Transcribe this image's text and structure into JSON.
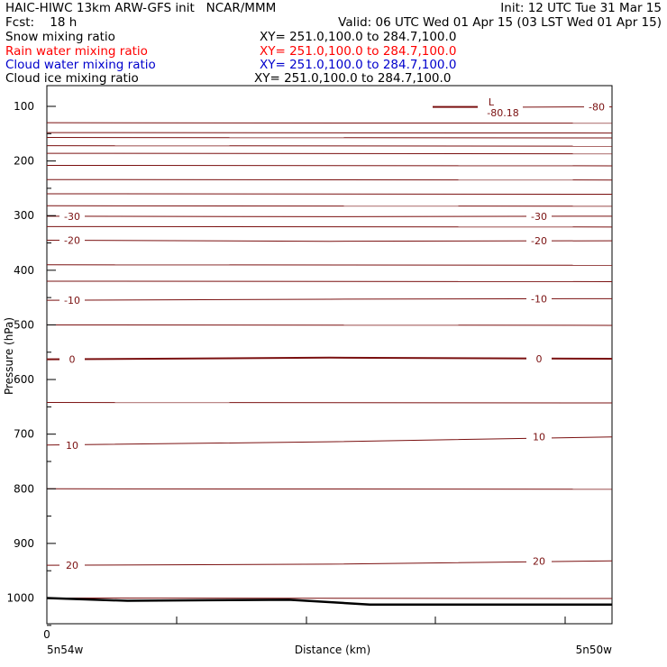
{
  "header": {
    "line1_left": "HAIC-HIWC 13km ARW-GFS init   NCAR/MMM",
    "line1_right": "Init: 12 UTC Tue 31 Mar 15",
    "line2_left": "Fcst:    18 h",
    "line2_right": "Valid: 06 UTC Wed 01 Apr 15 (03 LST Wed 01 Apr 15)"
  },
  "fields": [
    {
      "name": "Snow mixing ratio",
      "xy": "XY= 251.0,100.0 to 284.7,100.0",
      "color": "#000000"
    },
    {
      "name": "Rain water mixing ratio",
      "xy": "XY= 251.0,100.0 to 284.7,100.0",
      "color": "#ff0000"
    },
    {
      "name": "Cloud water mixing ratio",
      "xy": "XY= 251.0,100.0 to 284.7,100.0",
      "color": "#0000cc"
    },
    {
      "name": "Cloud ice mixing ratio",
      "xy": "XY= 251.0,100.0 to 284.7,100.0",
      "color": "#000000"
    }
  ],
  "chart_data": {
    "type": "line",
    "xlabel": "Distance (km)",
    "ylabel": "Pressure (hPa)",
    "x_ticks": [
      "0"
    ],
    "x_end_labels": {
      "left": "5n54w",
      "right": "5n50w"
    },
    "y_ticks": [
      100,
      200,
      300,
      400,
      500,
      600,
      700,
      800,
      900,
      1000
    ],
    "ylim": [
      1050,
      80
    ],
    "contour_color": "#7a1010",
    "contours": [
      {
        "level_label": "-80",
        "p": [
          101,
          101,
          101
        ],
        "labels_at": [
          "right"
        ]
      },
      {
        "level_label": "-30",
        "p": [
          301,
          302,
          301
        ],
        "labels_at": [
          "left",
          "right"
        ]
      },
      {
        "level_label": "-20",
        "p": [
          345,
          347,
          346
        ],
        "labels_at": [
          "left",
          "right"
        ]
      },
      {
        "level_label": "-10",
        "p": [
          455,
          453,
          452
        ],
        "labels_at": [
          "left",
          "right"
        ]
      },
      {
        "level_label": "0",
        "p": [
          563,
          560,
          562
        ],
        "labels_at": [
          "left",
          "right"
        ]
      },
      {
        "level_label": "10",
        "p": [
          720,
          714,
          705
        ],
        "labels_at": [
          "left",
          "right"
        ]
      },
      {
        "level_label": "20",
        "p": [
          940,
          938,
          932
        ],
        "labels_at": [
          "left",
          "right"
        ]
      }
    ],
    "other_isobars_p": [
      130,
      148,
      157,
      172,
      186,
      208,
      234,
      260,
      282,
      320,
      390,
      420,
      500,
      642,
      800,
      1000
    ],
    "minimum_marker": {
      "symbol": "L",
      "value": "-80.18"
    },
    "terrain_p": [
      1000,
      1005,
      1004,
      1003,
      1012,
      1012,
      1012,
      1012
    ]
  }
}
